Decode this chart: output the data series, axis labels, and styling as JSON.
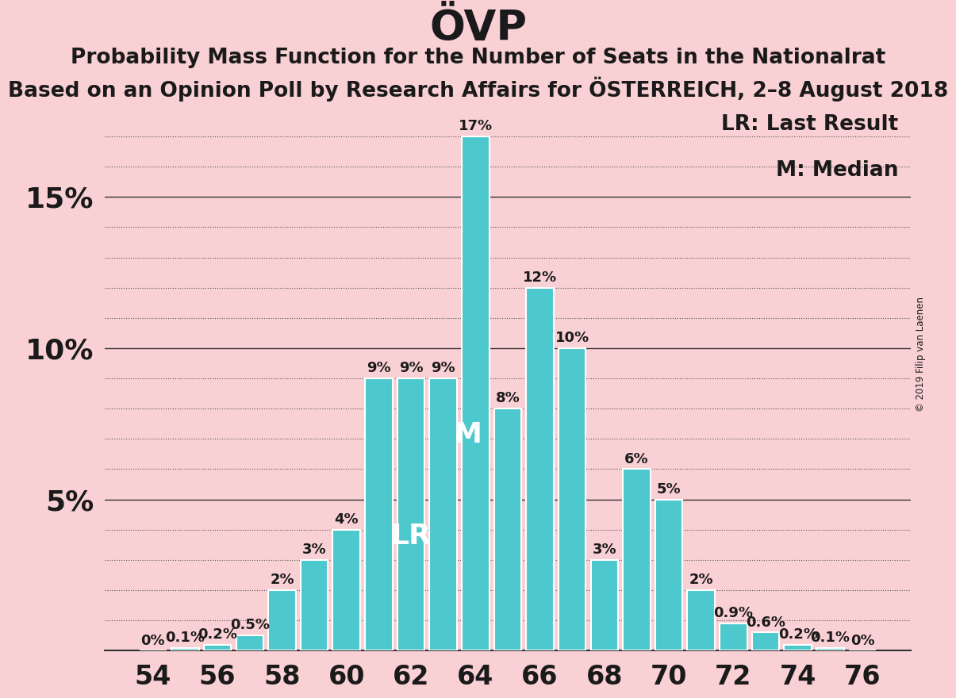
{
  "title": "ÖVP",
  "subtitle1": "Probability Mass Function for the Number of Seats in the Nationalrat",
  "subtitle2": "Based on an Opinion Poll by Research Affairs for ÖSTERREICH, 2–8 August 2018",
  "copyright": "© 2019 Filip van Laenen",
  "legend_lr": "LR: Last Result",
  "legend_m": "M: Median",
  "seats": [
    54,
    55,
    56,
    57,
    58,
    59,
    60,
    61,
    62,
    63,
    64,
    65,
    66,
    67,
    68,
    69,
    70,
    71,
    72,
    73,
    74,
    75,
    76
  ],
  "values": [
    0.0,
    0.1,
    0.2,
    0.5,
    2.0,
    3.0,
    4.0,
    9.0,
    9.0,
    9.0,
    17.0,
    8.0,
    12.0,
    10.0,
    3.0,
    6.0,
    5.0,
    2.0,
    0.9,
    0.6,
    0.2,
    0.1,
    0.0
  ],
  "bar_color": "#4dc8cc",
  "background_color": "#f9d0d4",
  "text_color": "#1a1a1a",
  "bar_label_color": "#1a1a1a",
  "lr_seat": 62,
  "median_seat": 64,
  "lr_label": "LR",
  "median_label": "M",
  "lr_label_color": "#ffffff",
  "median_label_color": "#ffffff",
  "ylim": [
    0,
    18
  ],
  "xlabel_seats": [
    54,
    56,
    58,
    60,
    62,
    64,
    66,
    68,
    70,
    72,
    74,
    76
  ],
  "title_fontsize": 38,
  "subtitle_fontsize": 19,
  "axis_label_fontsize": 24,
  "bar_label_fontsize": 13,
  "lr_m_fontsize": 26,
  "ytick_fontsize": 26,
  "legend_fontsize": 19
}
